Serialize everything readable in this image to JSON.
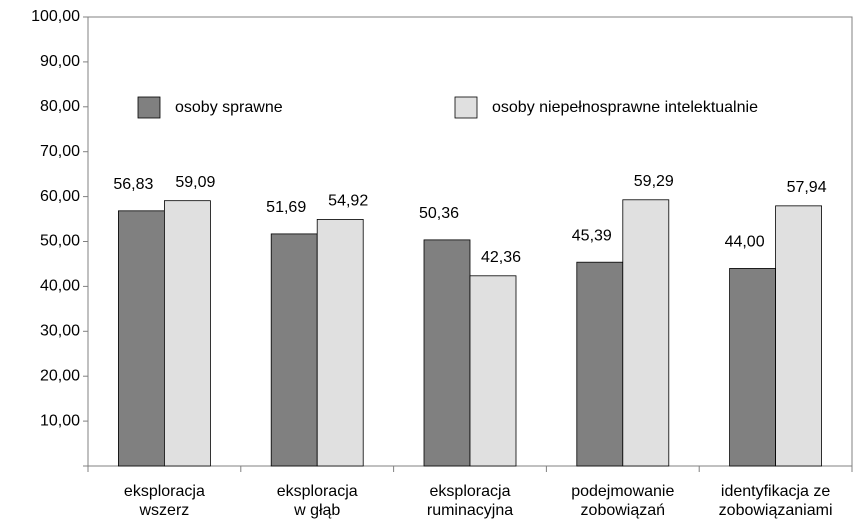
{
  "chart_data": {
    "type": "bar",
    "categories": [
      [
        "eksploracja",
        "wszerz"
      ],
      [
        "eksploracja",
        "w głąb"
      ],
      [
        "eksploracja",
        "ruminacyjna"
      ],
      [
        "podejmowanie",
        "zobowiązań"
      ],
      [
        "identyfikacja ze",
        "zobowiązaniami"
      ]
    ],
    "series": [
      {
        "name": "osoby sprawne",
        "color": "#808080",
        "values": [
          56.83,
          51.69,
          50.36,
          45.39,
          44.0
        ],
        "value_labels": [
          "56,83",
          "51,69",
          "50,36",
          "45,39",
          "44,00"
        ]
      },
      {
        "name": "osoby niepełnosprawne intelektualnie",
        "color": "#e0e0e0",
        "values": [
          59.09,
          54.92,
          42.36,
          59.29,
          57.94
        ],
        "value_labels": [
          "59,09",
          "54,92",
          "42,36",
          "59,29",
          "57,94"
        ]
      }
    ],
    "ylim": [
      0,
      100
    ],
    "yticks": [
      {
        "value": 10,
        "label": "10,00"
      },
      {
        "value": 20,
        "label": "20,00"
      },
      {
        "value": 30,
        "label": "30,00"
      },
      {
        "value": 40,
        "label": "40,00"
      },
      {
        "value": 50,
        "label": "50,00"
      },
      {
        "value": 60,
        "label": "60,00"
      },
      {
        "value": 70,
        "label": "70,00"
      },
      {
        "value": 80,
        "label": "80,00"
      },
      {
        "value": 90,
        "label": "90,00"
      },
      {
        "value": 100,
        "label": "100,00"
      }
    ],
    "legend": "top"
  }
}
